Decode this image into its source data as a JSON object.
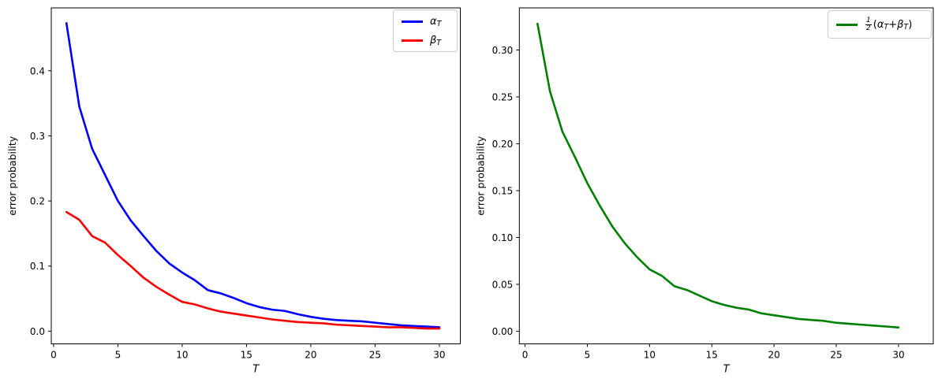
{
  "figure": {
    "background": "#ffffff"
  },
  "chart_data": [
    {
      "id": "left-plot",
      "type": "line",
      "title": "",
      "xlabel": "T",
      "ylabel": "error probability",
      "grid": false,
      "legend_position": "upper right",
      "x": [
        1,
        2,
        3,
        4,
        5,
        6,
        7,
        8,
        9,
        10,
        11,
        12,
        13,
        14,
        15,
        16,
        17,
        18,
        19,
        20,
        21,
        22,
        23,
        24,
        25,
        26,
        27,
        28,
        29,
        30
      ],
      "series": [
        {
          "name": "alpha_T",
          "color": "#0000ff",
          "line_width": 2.6,
          "values": [
            0.473,
            0.345,
            0.28,
            0.24,
            0.2,
            0.17,
            0.146,
            0.123,
            0.104,
            0.09,
            0.078,
            0.063,
            0.058,
            0.051,
            0.043,
            0.037,
            0.033,
            0.031,
            0.026,
            0.022,
            0.019,
            0.017,
            0.016,
            0.015,
            0.013,
            0.011,
            0.009,
            0.008,
            0.007,
            0.006
          ]
        },
        {
          "name": "beta_T",
          "color": "#ff0000",
          "line_width": 2.6,
          "values": [
            0.183,
            0.171,
            0.146,
            0.136,
            0.117,
            0.1,
            0.082,
            0.068,
            0.056,
            0.045,
            0.041,
            0.035,
            0.03,
            0.027,
            0.024,
            0.021,
            0.018,
            0.016,
            0.014,
            0.013,
            0.012,
            0.01,
            0.009,
            0.008,
            0.007,
            0.006,
            0.006,
            0.005,
            0.004,
            0.004
          ]
        }
      ],
      "xlim": [
        -0.18,
        31.63
      ],
      "ylim": [
        -0.0195,
        0.4965
      ],
      "xticks": [
        0,
        5,
        10,
        15,
        20,
        25,
        30
      ],
      "xtick_labels": [
        "0",
        "5",
        "10",
        "15",
        "20",
        "25",
        "30"
      ],
      "yticks": [
        0.0,
        0.1,
        0.2,
        0.3,
        0.4
      ],
      "ytick_labels": [
        "0.0",
        "0.1",
        "0.2",
        "0.3",
        "0.4"
      ],
      "legend_entries": [
        {
          "series": "alpha_T",
          "color": "#0000ff",
          "tokens": [
            {
              "t": "α",
              "i": true
            },
            {
              "t": "T",
              "sub": true
            }
          ]
        },
        {
          "series": "beta_T",
          "color": "#ff0000",
          "tokens": [
            {
              "t": "β",
              "i": true
            },
            {
              "t": "T",
              "sub": true
            }
          ]
        }
      ]
    },
    {
      "id": "right-plot",
      "type": "line",
      "title": "",
      "xlabel": "T",
      "ylabel": "error probability",
      "grid": false,
      "legend_position": "upper right",
      "x": [
        1,
        2,
        3,
        4,
        5,
        6,
        7,
        8,
        9,
        10,
        11,
        12,
        13,
        14,
        15,
        16,
        17,
        18,
        19,
        20,
        21,
        22,
        23,
        24,
        25,
        26,
        27,
        28,
        29,
        30
      ],
      "series": [
        {
          "name": "half_alpha_plus_beta",
          "color": "#008000",
          "line_width": 2.6,
          "values": [
            0.328,
            0.256,
            0.213,
            0.186,
            0.158,
            0.134,
            0.112,
            0.094,
            0.079,
            0.066,
            0.059,
            0.048,
            0.044,
            0.038,
            0.032,
            0.028,
            0.025,
            0.023,
            0.019,
            0.017,
            0.015,
            0.013,
            0.012,
            0.011,
            0.009,
            0.008,
            0.007,
            0.006,
            0.005,
            0.004
          ]
        }
      ],
      "xlim": [
        -0.46,
        32.79
      ],
      "ylim": [
        -0.0135,
        0.345
      ],
      "xticks": [
        0,
        5,
        10,
        15,
        20,
        25,
        30
      ],
      "xtick_labels": [
        "0",
        "5",
        "10",
        "15",
        "20",
        "25",
        "30"
      ],
      "yticks": [
        0.0,
        0.05,
        0.1,
        0.15,
        0.2,
        0.25,
        0.3
      ],
      "ytick_labels": [
        "0.00",
        "0.05",
        "0.10",
        "0.15",
        "0.20",
        "0.25",
        "0.30"
      ],
      "legend_entries": [
        {
          "series": "half_alpha_plus_beta",
          "color": "#008000",
          "frac": {
            "num": "1",
            "den": "2"
          },
          "tokens": [
            {
              "t": "("
            },
            {
              "t": "α",
              "i": true
            },
            {
              "t": "T",
              "sub": true
            },
            {
              "t": " + "
            },
            {
              "t": "β",
              "i": true
            },
            {
              "t": "T",
              "sub": true
            },
            {
              "t": ")"
            }
          ]
        }
      ]
    }
  ]
}
